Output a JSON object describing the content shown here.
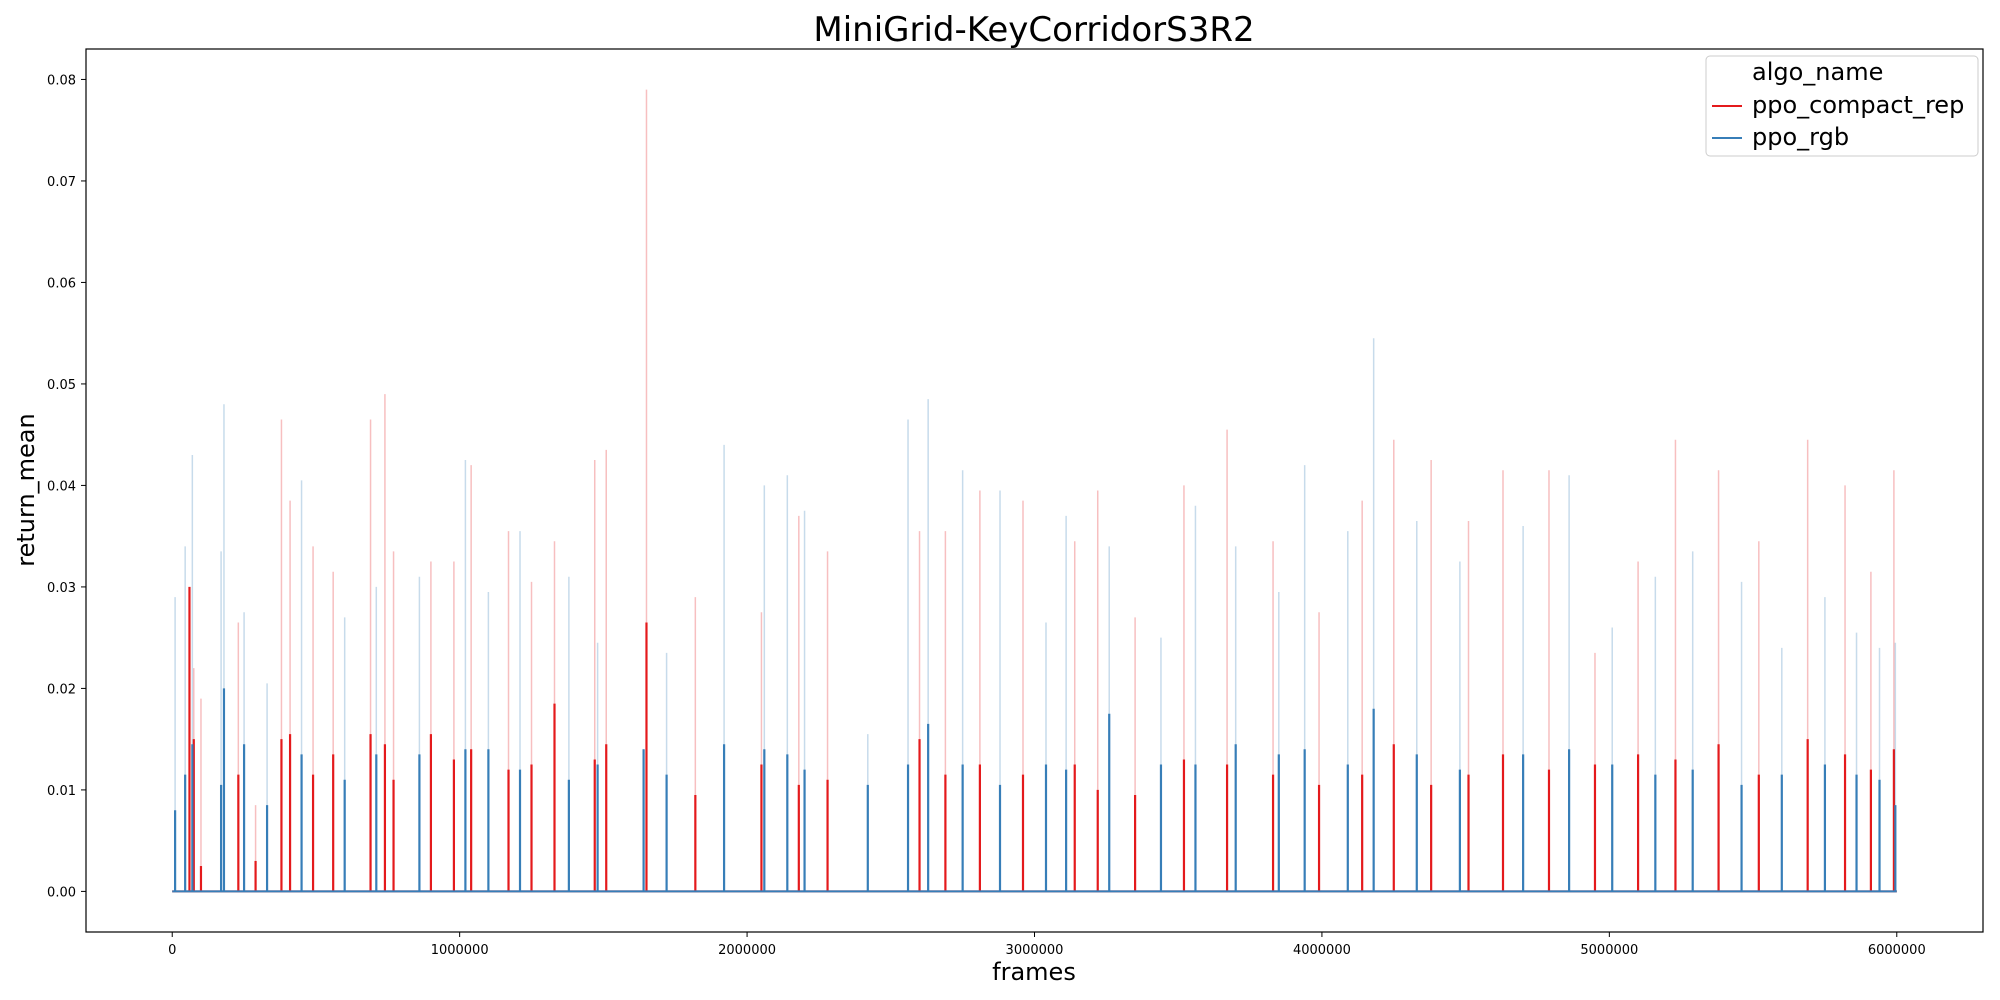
{
  "chart_data": {
    "type": "line",
    "title": "MiniGrid-KeyCorridorS3R2",
    "xlabel": "frames",
    "ylabel": "return_mean",
    "xlim": [
      -300000,
      6300000
    ],
    "ylim": [
      -0.004,
      0.083
    ],
    "x_ticks": [
      0,
      1000000,
      2000000,
      3000000,
      4000000,
      5000000,
      6000000
    ],
    "x_tick_labels": [
      "0",
      "1000000",
      "2000000",
      "3000000",
      "4000000",
      "5000000",
      "6000000"
    ],
    "y_ticks": [
      0.0,
      0.01,
      0.02,
      0.03,
      0.04,
      0.05,
      0.06,
      0.07,
      0.08
    ],
    "y_tick_labels": [
      "0.00",
      "0.01",
      "0.02",
      "0.03",
      "0.04",
      "0.05",
      "0.06",
      "0.07",
      "0.08"
    ],
    "grid": false,
    "legend": {
      "title": "algo_name",
      "position": "top-right",
      "entries": [
        "ppo_compact_rep",
        "ppo_rgb"
      ]
    },
    "series": [
      {
        "name": "ppo_compact_rep",
        "color": "#e41a1c",
        "x": [
          60000,
          75000,
          100000,
          230000,
          290000,
          380000,
          410000,
          490000,
          560000,
          690000,
          740000,
          770000,
          900000,
          980000,
          1040000,
          1170000,
          1250000,
          1330000,
          1470000,
          1510000,
          1650000,
          1820000,
          2050000,
          2180000,
          2280000,
          2600000,
          2690000,
          2810000,
          2960000,
          3140000,
          3220000,
          3350000,
          3520000,
          3670000,
          3830000,
          3990000,
          4140000,
          4250000,
          4380000,
          4510000,
          4630000,
          4790000,
          4950000,
          5100000,
          5230000,
          5380000,
          5520000,
          5690000,
          5820000,
          5910000,
          5990000
        ],
        "y": [
          0.03,
          0.015,
          0.0025,
          0.0115,
          0.003,
          0.015,
          0.0155,
          0.0115,
          0.0135,
          0.0155,
          0.0145,
          0.011,
          0.0155,
          0.013,
          0.014,
          0.012,
          0.0125,
          0.0185,
          0.013,
          0.0145,
          0.0265,
          0.0095,
          0.0125,
          0.0105,
          0.011,
          0.015,
          0.0115,
          0.0125,
          0.0115,
          0.0125,
          0.01,
          0.0095,
          0.013,
          0.0125,
          0.0115,
          0.0105,
          0.0115,
          0.0145,
          0.0105,
          0.0115,
          0.0135,
          0.012,
          0.0125,
          0.0135,
          0.013,
          0.0145,
          0.0115,
          0.015,
          0.0135,
          0.012,
          0.014
        ],
        "y_spike": [
          0.0245,
          0.022,
          0.019,
          0.0265,
          0.0085,
          0.0465,
          0.0385,
          0.034,
          0.0315,
          0.0465,
          0.049,
          0.0335,
          0.0325,
          0.0325,
          0.042,
          0.0355,
          0.0305,
          0.0345,
          0.0425,
          0.0435,
          0.079,
          0.029,
          0.0275,
          0.037,
          0.0335,
          0.0355,
          0.0355,
          0.0395,
          0.0385,
          0.0345,
          0.0395,
          0.027,
          0.04,
          0.0455,
          0.0345,
          0.0275,
          0.0385,
          0.0445,
          0.0425,
          0.0365,
          0.0415,
          0.0415,
          0.0235,
          0.0325,
          0.0445,
          0.0415,
          0.0345,
          0.0445,
          0.04,
          0.0315,
          0.0415
        ]
      },
      {
        "name": "ppo_rgb",
        "color": "#377eb8",
        "x": [
          10000,
          45000,
          70000,
          170000,
          180000,
          250000,
          330000,
          450000,
          600000,
          710000,
          860000,
          1020000,
          1100000,
          1210000,
          1380000,
          1480000,
          1640000,
          1720000,
          1920000,
          2060000,
          2140000,
          2200000,
          2420000,
          2560000,
          2630000,
          2750000,
          2880000,
          3040000,
          3110000,
          3260000,
          3440000,
          3560000,
          3700000,
          3850000,
          3940000,
          4090000,
          4180000,
          4330000,
          4480000,
          4700000,
          4860000,
          5010000,
          5160000,
          5290000,
          5460000,
          5600000,
          5750000,
          5860000,
          5940000,
          5995000
        ],
        "y": [
          0.008,
          0.0115,
          0.0145,
          0.0105,
          0.02,
          0.0145,
          0.0085,
          0.0135,
          0.011,
          0.0135,
          0.0135,
          0.014,
          0.014,
          0.012,
          0.011,
          0.0125,
          0.014,
          0.0115,
          0.0145,
          0.014,
          0.0135,
          0.012,
          0.0105,
          0.0125,
          0.0165,
          0.0125,
          0.0105,
          0.0125,
          0.012,
          0.0175,
          0.0125,
          0.0125,
          0.0145,
          0.0135,
          0.014,
          0.0125,
          0.018,
          0.0135,
          0.012,
          0.0135,
          0.014,
          0.0125,
          0.0115,
          0.012,
          0.0105,
          0.0115,
          0.0125,
          0.0115,
          0.011,
          0.0085
        ],
        "y_spike": [
          0.029,
          0.034,
          0.043,
          0.0335,
          0.048,
          0.0275,
          0.0205,
          0.0405,
          0.027,
          0.03,
          0.031,
          0.0425,
          0.0295,
          0.0355,
          0.031,
          0.0245,
          0.014,
          0.0235,
          0.044,
          0.04,
          0.041,
          0.0375,
          0.0155,
          0.0465,
          0.0485,
          0.0415,
          0.0395,
          0.0265,
          0.037,
          0.034,
          0.025,
          0.038,
          0.034,
          0.0295,
          0.042,
          0.0355,
          0.0545,
          0.0365,
          0.0325,
          0.036,
          0.041,
          0.026,
          0.031,
          0.0335,
          0.0305,
          0.024,
          0.029,
          0.0255,
          0.024,
          0.0245
        ]
      }
    ]
  }
}
